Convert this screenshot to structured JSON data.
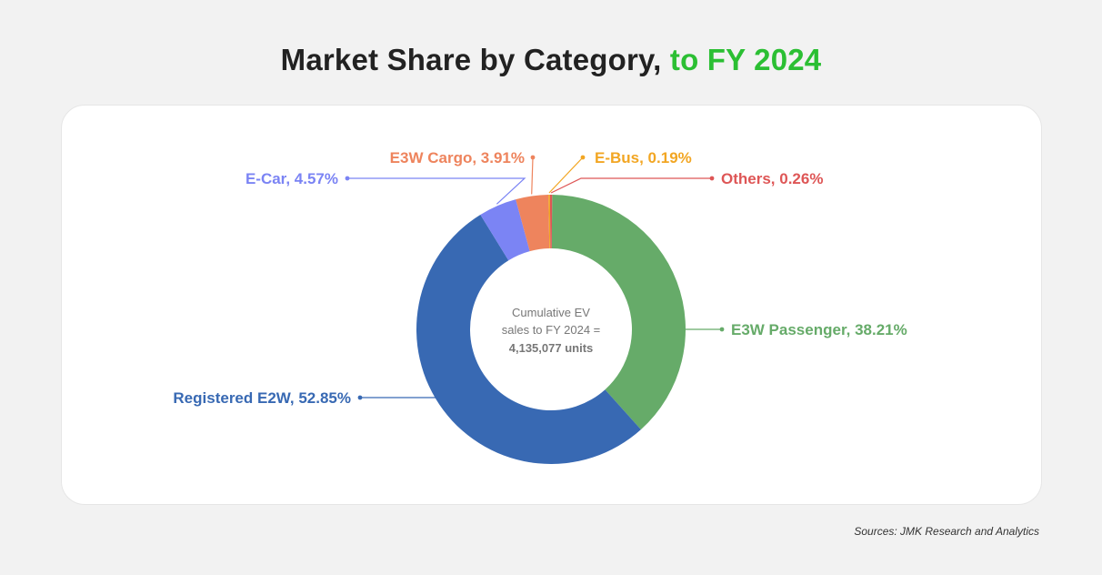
{
  "title": {
    "main": "Market Share by Category,",
    "accent": "to FY 2024",
    "accent_color": "#2bbf33"
  },
  "source": "Sources: JMK Research and Analytics",
  "chart_data": {
    "type": "pie",
    "variant": "donut",
    "title": "Market Share by Category, to FY 2024",
    "center_text": {
      "line1": "Cumulative EV",
      "line2": "sales to FY 2024 =",
      "line3": "4,135,077 units"
    },
    "slices": [
      {
        "label": "E3W Passenger",
        "value": 38.21,
        "display": "E3W Passenger, 38.21%",
        "color": "#66ab69"
      },
      {
        "label": "Registered E2W",
        "value": 52.85,
        "display": "Registered E2W, 52.85%",
        "color": "#3869b3"
      },
      {
        "label": "E-Car",
        "value": 4.57,
        "display": "E-Car, 4.57%",
        "color": "#7b84f4"
      },
      {
        "label": "E3W Cargo",
        "value": 3.91,
        "display": "E3W Cargo, 3.91%",
        "color": "#ee845d"
      },
      {
        "label": "E-Bus",
        "value": 0.19,
        "display": "E-Bus, 0.19%",
        "color": "#f2a623"
      },
      {
        "label": "Others",
        "value": 0.26,
        "display": "Others, 0.26%",
        "color": "#de5656"
      }
    ],
    "legend": "none"
  }
}
